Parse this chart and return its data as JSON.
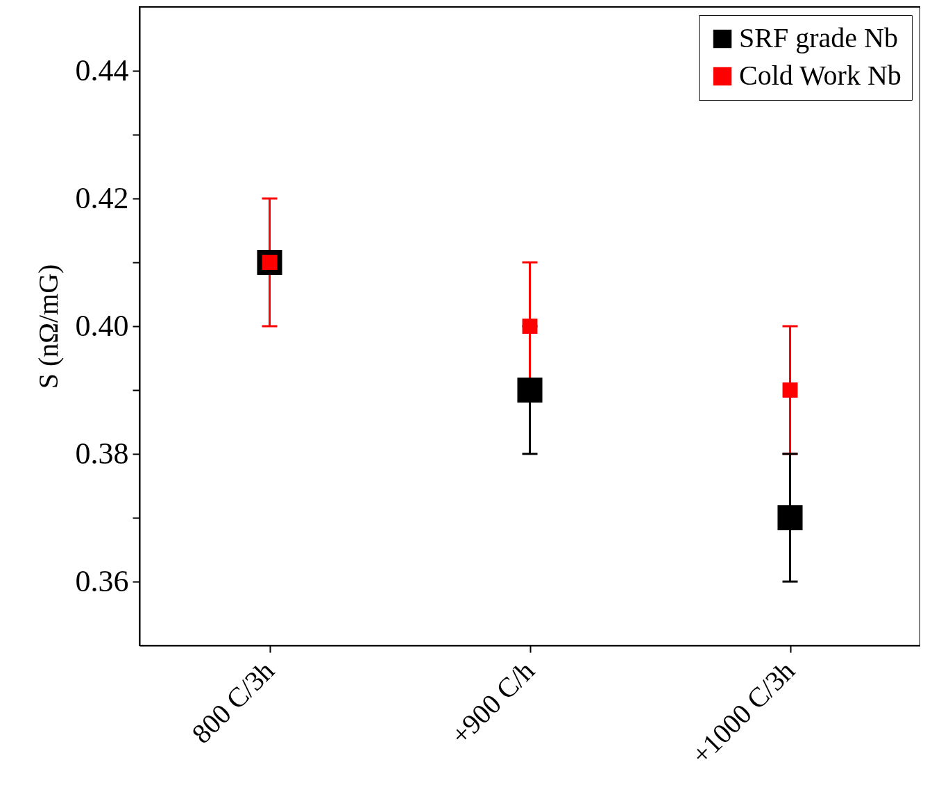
{
  "chart_data": {
    "type": "scatter",
    "ylabel": "S (nΩ/mG)",
    "categories": [
      "800 C/3h",
      "+900 C/h",
      "+1000 C/3h"
    ],
    "series": [
      {
        "name": "SRF grade Nb",
        "color": "#000000",
        "values": [
          0.41,
          0.39,
          0.37
        ],
        "errors": [
          null,
          0.01,
          0.01
        ]
      },
      {
        "name": "Cold Work Nb",
        "color": "#ff0000",
        "values": [
          0.41,
          0.4,
          0.39
        ],
        "errors": [
          0.01,
          0.01,
          0.01
        ]
      }
    ],
    "ylim": [
      0.35,
      0.45
    ],
    "yticks": [
      0.36,
      {
        "value": 0.37,
        "label": null
      },
      0.38,
      {
        "value": 0.39,
        "label": null
      },
      {
        "value": 0.4,
        "label": "0.40"
      },
      {
        "value": 0.41,
        "label": null
      },
      0.42,
      {
        "value": 0.43,
        "label": null
      },
      0.44
    ],
    "marker": "square",
    "legend": "top right",
    "grid": false
  }
}
